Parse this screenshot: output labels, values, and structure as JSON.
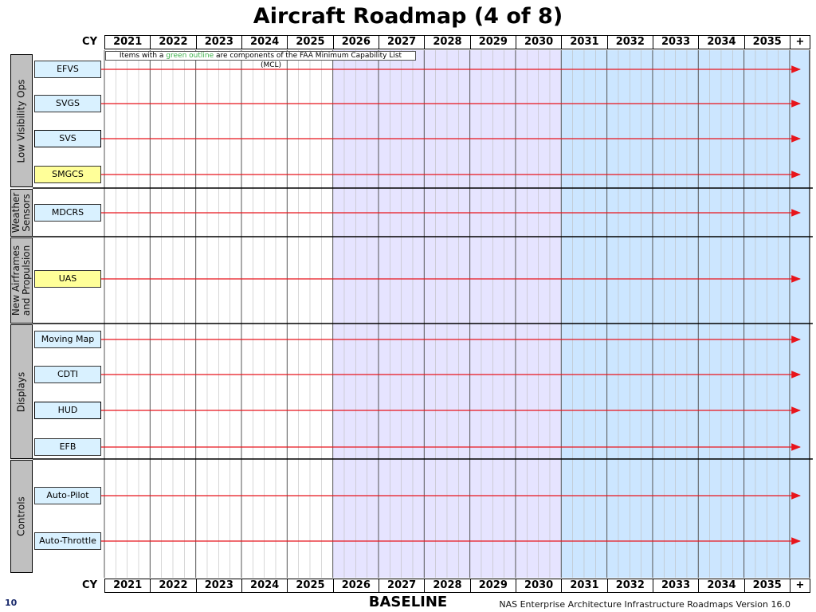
{
  "title": "Aircraft Roadmap (4 of 8)",
  "axis_label": "CY",
  "note": {
    "before": "Items with a ",
    "highlight": "green outline",
    "after": " are components of the FAA Minimum Capability List",
    "tail": "(MCL)",
    "highlight_color": "#3cb04a"
  },
  "footer": {
    "center": "BASELINE",
    "right": "NAS Enterprise Architecture Infrastructure Roadmaps Version 16.0",
    "page": "10"
  },
  "colors": {
    "period1_bg": "#ffffff",
    "period2_bg": "#e6e4ff",
    "period3_bg": "#cce6ff",
    "category_fill": "#c0c0c0",
    "arrow": "#e8151c",
    "highlight_item": "#ffff99",
    "standard_item": "#d9f1ff"
  },
  "chart_data": {
    "type": "timeline",
    "x": [
      "2021",
      "2022",
      "2023",
      "2024",
      "2025",
      "2026",
      "2027",
      "2028",
      "2029",
      "2030",
      "2031",
      "2032",
      "2033",
      "2034",
      "2035",
      "+"
    ],
    "categories": [
      {
        "name": "Low Visibility Ops",
        "items": [
          {
            "label": "EFVS",
            "fill": "standard",
            "start": "2021",
            "end": "+"
          },
          {
            "label": "SVGS",
            "fill": "standard",
            "start": "2021",
            "end": "+"
          },
          {
            "label": "SVS",
            "fill": "standard",
            "start": "2021",
            "end": "+"
          },
          {
            "label": "SMGCS",
            "fill": "highlight",
            "start": "2021",
            "end": "+"
          }
        ]
      },
      {
        "name": "Weather\nSensors",
        "items": [
          {
            "label": "MDCRS",
            "fill": "standard",
            "start": "2021",
            "end": "+"
          }
        ]
      },
      {
        "name": "New Airframes\nand Propulsion",
        "items": [
          {
            "label": "UAS",
            "fill": "highlight",
            "start": "2021",
            "end": "+"
          }
        ]
      },
      {
        "name": "Displays",
        "items": [
          {
            "label": "Moving Map",
            "fill": "standard",
            "start": "2021",
            "end": "+"
          },
          {
            "label": "CDTI",
            "fill": "standard",
            "start": "2021",
            "end": "+"
          },
          {
            "label": "HUD",
            "fill": "standard",
            "start": "2021",
            "end": "+"
          },
          {
            "label": "EFB",
            "fill": "standard",
            "start": "2021",
            "end": "+"
          }
        ]
      },
      {
        "name": "Controls",
        "items": [
          {
            "label": "Auto-Pilot",
            "fill": "standard",
            "start": "2021",
            "end": "+"
          },
          {
            "label": "Auto-Throttle",
            "fill": "standard",
            "start": "2021",
            "end": "+"
          }
        ]
      }
    ]
  }
}
